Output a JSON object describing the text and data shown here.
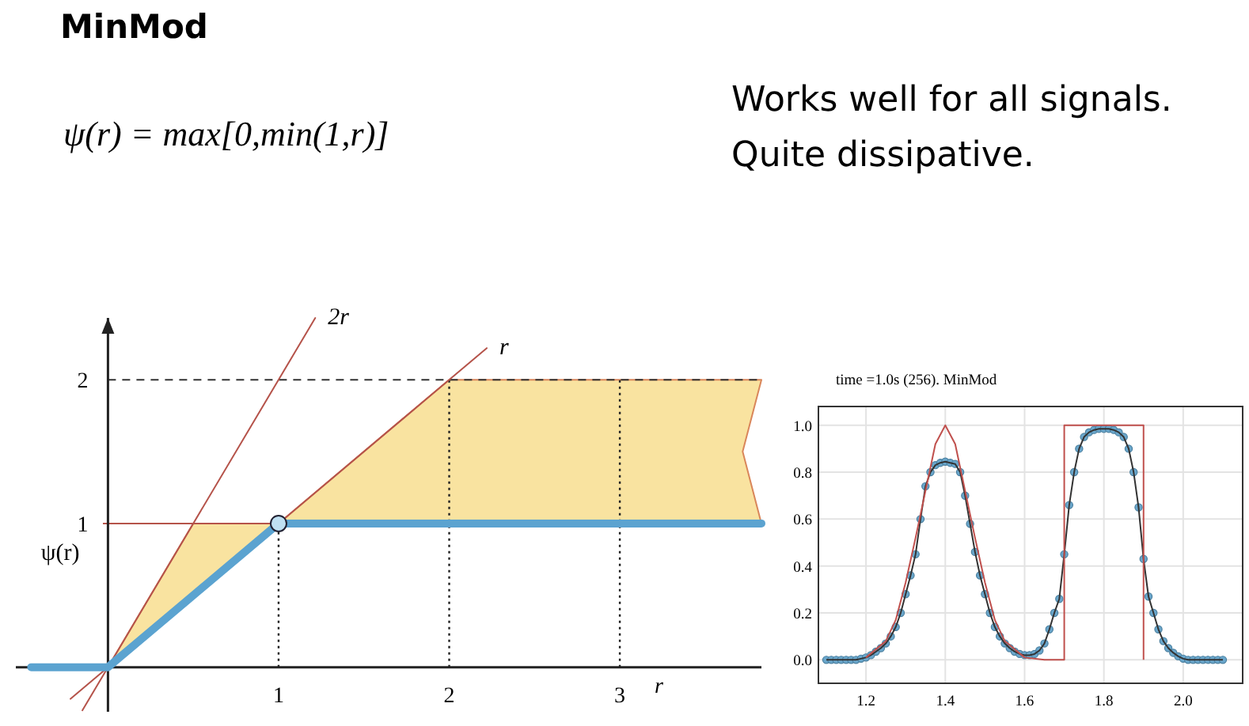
{
  "chart_data": [
    {
      "type": "line",
      "title": "MinMod",
      "annotations": [
        "ψ(r) = max[0,min(1,r)]",
        "Works well for all signals.",
        "Quite dissipative."
      ],
      "xlabel": "r",
      "ylabel": "ψ(r)",
      "xlim": [
        -0.54,
        3.83
      ],
      "ylim": [
        -0.31,
        2.43
      ],
      "xticks": [
        1,
        2,
        3
      ],
      "yticks": [
        1,
        2
      ],
      "legend": false,
      "ref_lines": [
        {
          "axis": "y",
          "value": 2,
          "line_style": "dashed",
          "color": "#333333"
        },
        {
          "axis": "y",
          "value": 1,
          "line_style": "solid",
          "color": "#b5534a"
        },
        {
          "axis": "x",
          "value": 1,
          "line_style": "dotted",
          "color": "#222222"
        },
        {
          "axis": "x",
          "value": 2,
          "line_style": "dotted",
          "color": "#222222"
        },
        {
          "axis": "x",
          "value": 3,
          "line_style": "dotted",
          "color": "#222222"
        }
      ],
      "series": [
        {
          "type": "area",
          "color": "#f9e3a0",
          "x": [
            0,
            0.5,
            1,
            2,
            3.83,
            3.72,
            3.83,
            1,
            0
          ],
          "values": [
            0,
            1,
            1,
            2,
            2,
            1.5,
            1,
            1,
            0
          ]
        },
        {
          "type": "line",
          "name": "2r",
          "color": "#b5534a",
          "x": [
            -0.15,
            1.215
          ],
          "values": [
            -0.3,
            2.43
          ]
        },
        {
          "type": "line",
          "name": "r",
          "color": "#b5534a",
          "x": [
            -0.22,
            2.22
          ],
          "values": [
            -0.22,
            2.22
          ]
        },
        {
          "type": "line",
          "color": "#5ba3d0",
          "x": [
            -0.45,
            0,
            1,
            3.83
          ],
          "values": [
            0,
            0,
            1,
            1
          ]
        },
        {
          "type": "scatter",
          "color": "#bfe0f2",
          "x": [
            1
          ],
          "values": [
            1
          ]
        }
      ]
    },
    {
      "type": "line",
      "title": "time =1.0s (256). MinMod",
      "xlim": [
        1.08,
        2.15
      ],
      "ylim": [
        -0.1,
        1.08
      ],
      "xticks": [
        1.2,
        1.4,
        1.6,
        1.8,
        {
          "value": 2,
          "label": "2.0"
        }
      ],
      "yticks": [
        {
          "value": 0,
          "label": "0.0"
        },
        0.2,
        0.4,
        0.6,
        0.8,
        {
          "value": 1,
          "label": "1.0"
        }
      ],
      "grid": true,
      "legend": false,
      "marker": "circle",
      "series": [
        {
          "type": "line",
          "color": "#6aa7cc",
          "x": [
            1.1,
            1.1125,
            1.125,
            1.1375,
            1.15,
            1.1625,
            1.175,
            1.1875,
            1.2,
            1.2125,
            1.225,
            1.2375,
            1.25,
            1.2625,
            1.275,
            1.2875,
            1.3,
            1.3125,
            1.325,
            1.3375,
            1.35,
            1.3625,
            1.375,
            1.3875,
            1.4,
            1.4125,
            1.425,
            1.4375,
            1.45,
            1.4625,
            1.475,
            1.4875,
            1.5,
            1.5125,
            1.525,
            1.5375,
            1.55,
            1.5625,
            1.575,
            1.5875,
            1.6,
            1.6125,
            1.625,
            1.6375,
            1.65,
            1.6625,
            1.675,
            1.6875,
            1.7,
            1.7125,
            1.725,
            1.7375,
            1.75,
            1.7625,
            1.775,
            1.7875,
            1.8,
            1.8125,
            1.825,
            1.8375,
            1.85,
            1.8625,
            1.875,
            1.8875,
            1.9,
            1.9125,
            1.925,
            1.9375,
            1.95,
            1.9625,
            1.975,
            1.9875,
            2.0,
            2.0125,
            2.025,
            2.0375,
            2.05,
            2.0625,
            2.075,
            2.0875,
            2.1
          ],
          "values": [
            0,
            0,
            0,
            0,
            0,
            0,
            0,
            0.005,
            0.01,
            0.02,
            0.035,
            0.05,
            0.07,
            0.1,
            0.14,
            0.2,
            0.28,
            0.36,
            0.45,
            0.6,
            0.74,
            0.8,
            0.83,
            0.84,
            0.845,
            0.84,
            0.835,
            0.8,
            0.7,
            0.58,
            0.46,
            0.36,
            0.28,
            0.2,
            0.14,
            0.1,
            0.07,
            0.05,
            0.035,
            0.025,
            0.02,
            0.02,
            0.025,
            0.04,
            0.07,
            0.13,
            0.2,
            0.26,
            0.45,
            0.66,
            0.8,
            0.9,
            0.95,
            0.97,
            0.98,
            0.985,
            0.985,
            0.985,
            0.98,
            0.97,
            0.95,
            0.9,
            0.8,
            0.65,
            0.43,
            0.27,
            0.2,
            0.13,
            0.08,
            0.05,
            0.03,
            0.015,
            0.005,
            0,
            0,
            0,
            0,
            0,
            0,
            0,
            0
          ]
        },
        {
          "type": "line",
          "marker": "none",
          "color": "#c0504d",
          "x": [
            1.2,
            1.25,
            1.275,
            1.3,
            1.325,
            1.35,
            1.375,
            1.4,
            1.425,
            1.45,
            1.475,
            1.5,
            1.525,
            1.55,
            1.6,
            1.65,
            1.7,
            1.7,
            1.9,
            1.9
          ],
          "values": [
            0.01,
            0.08,
            0.17,
            0.33,
            0.52,
            0.72,
            0.92,
            1.0,
            0.92,
            0.72,
            0.52,
            0.33,
            0.17,
            0.08,
            0.01,
            0,
            0,
            1.0,
            1.0,
            0
          ]
        }
      ]
    }
  ]
}
